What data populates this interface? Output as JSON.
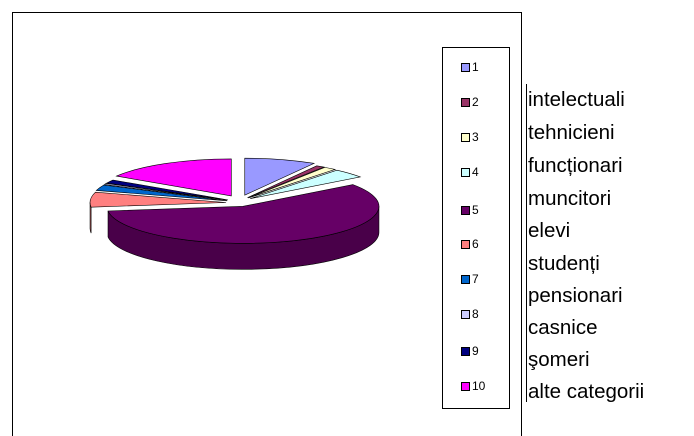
{
  "chart_data": {
    "type": "pie",
    "style": "3d-exploded",
    "title": "",
    "categories": [
      "1",
      "2",
      "3",
      "4",
      "5",
      "6",
      "7",
      "8",
      "9",
      "10"
    ],
    "values": [
      8.5,
      1,
      1.5,
      4,
      58,
      6.5,
      2.5,
      0.5,
      1.5,
      16
    ],
    "colors": [
      "#9999ff",
      "#993366",
      "#ffffcc",
      "#ccffff",
      "#660066",
      "#ff8080",
      "#0066cc",
      "#ccccff",
      "#000080",
      "#ff00ff"
    ],
    "legend": {
      "position": "right",
      "entries": [
        "1",
        "2",
        "3",
        "4",
        "5",
        "6",
        "7",
        "8",
        "9",
        "10"
      ]
    }
  },
  "category_names": [
    "intelectuali",
    "tehnicieni",
    "funcționari",
    "muncitori",
    "elevi",
    "studenți",
    "pensionari",
    "casnice",
    "şomeri",
    "alte categorii"
  ]
}
